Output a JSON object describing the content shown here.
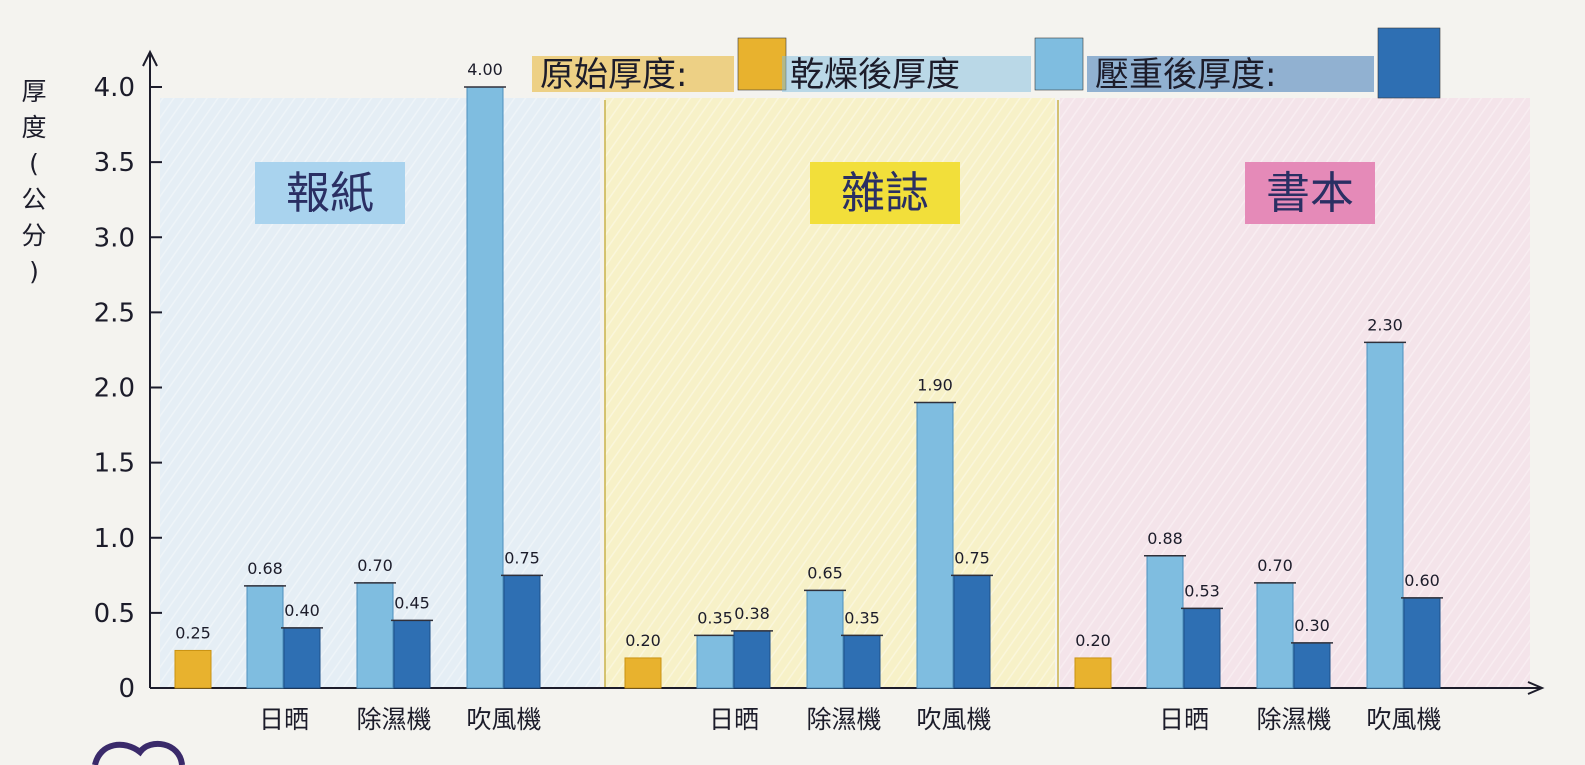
{
  "chart_data": {
    "type": "bar",
    "ylabel": "厚度(公分)",
    "ylim": [
      0,
      4.0
    ],
    "yticks": [
      "0",
      "0.5",
      "1.0",
      "1.5",
      "2.0",
      "2.5",
      "3.0",
      "3.5",
      "4.0"
    ],
    "yticks_values": [
      0,
      0.5,
      1.0,
      1.5,
      2.0,
      2.5,
      3.0,
      3.5,
      4.0
    ],
    "legend_position": "top",
    "legend": [
      {
        "label": "原始厚度:",
        "color": "#e8b22e"
      },
      {
        "label": "乾燥後厚度",
        "color": "#7fbde0"
      },
      {
        "label": "壓重後厚度:",
        "color": "#2e6fb3"
      }
    ],
    "groups": [
      {
        "title": "報紙",
        "title_bg": "#a9d3ee",
        "panel_bg": "#e5eef5",
        "original": {
          "value": 0.25,
          "label": "0.25"
        },
        "methods": [
          {
            "name": "日晒",
            "dried": 0.68,
            "dried_label": "0.68",
            "pressed": 0.4,
            "pressed_label": "0.40"
          },
          {
            "name": "除濕機",
            "dried": 0.7,
            "dried_label": "0.70",
            "pressed": 0.45,
            "pressed_label": "0.45"
          },
          {
            "name": "吹風機",
            "dried": 4.0,
            "dried_label": "4.00",
            "pressed": 0.75,
            "pressed_label": "0.75"
          }
        ]
      },
      {
        "title": "雜誌",
        "title_bg": "#f2df3a",
        "panel_bg": "#f7f1c8",
        "original": {
          "value": 0.2,
          "label": "0.20"
        },
        "methods": [
          {
            "name": "日晒",
            "dried": 0.35,
            "dried_label": "0.35",
            "pressed": 0.38,
            "pressed_label": "0.38"
          },
          {
            "name": "除濕機",
            "dried": 0.65,
            "dried_label": "0.65",
            "pressed": 0.35,
            "pressed_label": "0.35"
          },
          {
            "name": "吹風機",
            "dried": 1.9,
            "dried_label": "1.90",
            "pressed": 0.75,
            "pressed_label": "0.75"
          }
        ]
      },
      {
        "title": "書本",
        "title_bg": "#e58ab8",
        "panel_bg": "#f4e4ea",
        "original": {
          "value": 0.2,
          "label": "0.20"
        },
        "methods": [
          {
            "name": "日晒",
            "dried": 0.88,
            "dried_label": "0.88",
            "pressed": 0.53,
            "pressed_label": "0.53"
          },
          {
            "name": "除濕機",
            "dried": 0.7,
            "dried_label": "0.70",
            "pressed": 0.3,
            "pressed_label": "0.30"
          },
          {
            "name": "吹風機",
            "dried": 2.3,
            "dried_label": "2.30",
            "pressed": 0.6,
            "pressed_label": "0.60"
          }
        ]
      }
    ]
  }
}
